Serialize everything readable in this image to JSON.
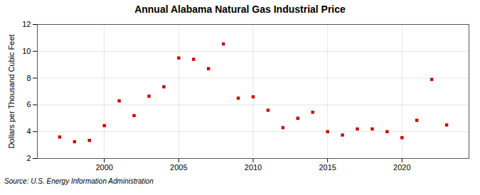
{
  "chart_data": {
    "type": "scatter",
    "title": "Annual Alabama Natural Gas Industrial Price",
    "ylabel": "Dollars per Thousand Cubic Feet",
    "annotation": "Source: U.S. Energy Information Administration",
    "x": [
      1997,
      1998,
      1999,
      2000,
      2001,
      2002,
      2003,
      2004,
      2005,
      2006,
      2007,
      2008,
      2009,
      2010,
      2011,
      2012,
      2013,
      2014,
      2015,
      2016,
      2017,
      2018,
      2019,
      2020,
      2021,
      2022,
      2023
    ],
    "values": [
      3.6,
      3.25,
      3.35,
      4.45,
      6.3,
      5.2,
      6.65,
      7.35,
      9.5,
      9.4,
      8.7,
      10.55,
      6.5,
      6.6,
      5.6,
      4.3,
      5.0,
      5.45,
      4.0,
      3.75,
      4.2,
      4.2,
      4.0,
      3.55,
      4.85,
      7.9,
      4.5
    ],
    "color": "#cc0000",
    "marker": "square",
    "xlim": [
      1995.5,
      2024.5
    ],
    "ylim": [
      2,
      12
    ],
    "xticks": [
      2000,
      2005,
      2010,
      2015,
      2020
    ],
    "yticks": [
      2,
      4,
      6,
      8,
      10,
      12
    ],
    "grid": true
  }
}
